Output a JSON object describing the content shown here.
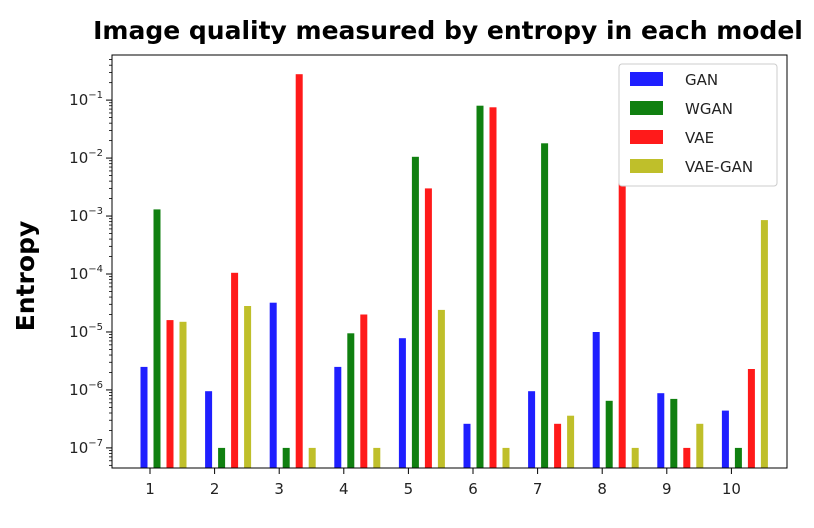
{
  "chart_data": {
    "type": "bar",
    "title": "Image quality measured by entropy in each model",
    "xlabel": "",
    "ylabel": "Entropy",
    "yscale": "log",
    "ylim": [
      4.5e-08,
      0.6
    ],
    "yticks": [
      {
        "value": 1e-07,
        "base": "10",
        "exp": "−7"
      },
      {
        "value": 1e-06,
        "base": "10",
        "exp": "−6"
      },
      {
        "value": 1e-05,
        "base": "10",
        "exp": "−5"
      },
      {
        "value": 0.0001,
        "base": "10",
        "exp": "−4"
      },
      {
        "value": 0.001,
        "base": "10",
        "exp": "−3"
      },
      {
        "value": 0.01,
        "base": "10",
        "exp": "−2"
      },
      {
        "value": 0.1,
        "base": "10",
        "exp": "−1"
      }
    ],
    "categories": [
      "1",
      "2",
      "3",
      "4",
      "5",
      "6",
      "7",
      "8",
      "9",
      "10"
    ],
    "series": [
      {
        "name": "GAN",
        "color": "#1f1fff",
        "values": [
          2.5e-06,
          9.5e-07,
          3.2e-05,
          2.5e-06,
          7.8e-06,
          2.6e-07,
          9.5e-07,
          1e-05,
          8.8e-07,
          4.4e-07
        ]
      },
      {
        "name": "WGAN",
        "color": "#108010",
        "values": [
          0.0013,
          1e-07,
          1e-07,
          9.5e-06,
          0.0105,
          0.08,
          0.018,
          6.5e-07,
          7e-07,
          1e-07
        ]
      },
      {
        "name": "VAE",
        "color": "#ff1a1a",
        "values": [
          1.6e-05,
          0.000105,
          0.28,
          2e-05,
          0.003,
          0.075,
          2.6e-07,
          0.13,
          1e-07,
          2.3e-06
        ]
      },
      {
        "name": "VAE-GAN",
        "color": "#bfbf2a",
        "values": [
          1.5e-05,
          2.8e-05,
          1e-07,
          1e-07,
          2.4e-05,
          1e-07,
          3.6e-07,
          1e-07,
          2.6e-07,
          0.00085
        ]
      }
    ],
    "legend_position": "top-right",
    "grid": false
  }
}
